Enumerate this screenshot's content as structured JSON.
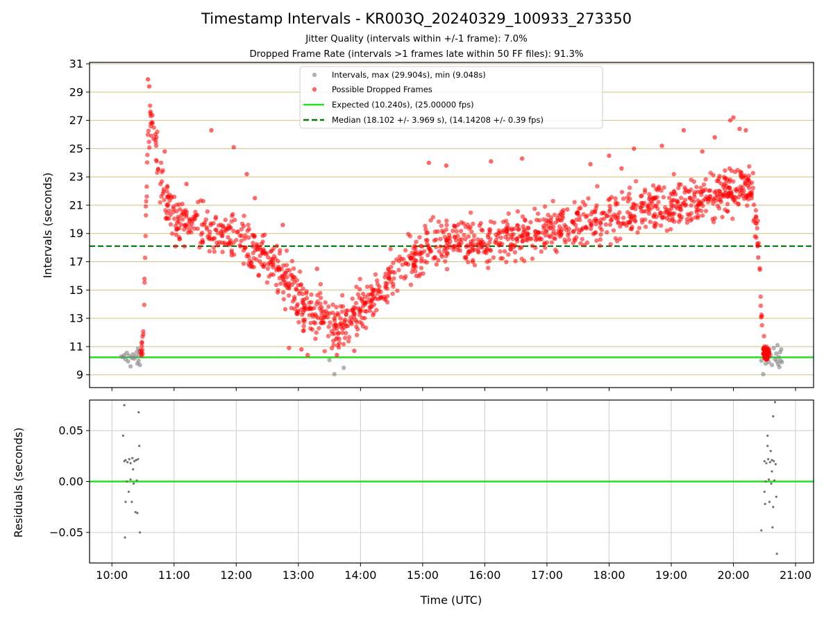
{
  "chart_data": [
    {
      "type": "scatter",
      "title": "Timestamp Intervals - KR003Q_20240329_100933_273350",
      "subtitles": [
        "Jitter Quality (intervals within +/-1 frame): 7.0%",
        "Dropped Frame Rate (intervals >1 frames late within 50 FF files): 91.3%"
      ],
      "ylabel": "Intervals (seconds)",
      "xlabel": "",
      "ylim": [
        8.1,
        31.1
      ],
      "xlim_hours": [
        9.64,
        21.29
      ],
      "yticks": [
        9,
        11,
        13,
        15,
        17,
        19,
        21,
        23,
        25,
        27,
        29,
        31
      ],
      "grid": "horizontal",
      "legend_position": "top-center",
      "legend": [
        "Intervals, max (29.904s), min (9.048s)",
        "Possible Dropped Frames",
        "Expected (10.240s), (25.00000 fps)",
        "Median (18.102 +/- 3.969 s), (14.14208 +/- 0.39 fps)"
      ],
      "expected_interval": 10.24,
      "median_interval": 18.102,
      "normal_points": [
        [
          10.15,
          10.3
        ],
        [
          10.18,
          10.25
        ],
        [
          10.2,
          10.4
        ],
        [
          10.22,
          10.1
        ],
        [
          10.24,
          10.55
        ],
        [
          10.26,
          9.95
        ],
        [
          10.28,
          10.35
        ],
        [
          10.3,
          9.6
        ],
        [
          10.32,
          10.2
        ],
        [
          10.34,
          10.45
        ],
        [
          10.36,
          10.15
        ],
        [
          10.38,
          10.3
        ],
        [
          10.4,
          10.6
        ],
        [
          10.41,
          9.8
        ],
        [
          10.42,
          10.85
        ],
        [
          10.43,
          10.0
        ],
        [
          10.44,
          10.4
        ],
        [
          10.45,
          9.7
        ],
        [
          10.46,
          10.75
        ],
        [
          10.47,
          10.5
        ],
        [
          13.5,
          10.05
        ],
        [
          13.58,
          9.05
        ],
        [
          13.73,
          9.5
        ],
        [
          20.45,
          10.0
        ],
        [
          20.48,
          9.05
        ],
        [
          20.5,
          10.3
        ],
        [
          20.52,
          9.8
        ],
        [
          20.55,
          10.7
        ],
        [
          20.57,
          9.9
        ],
        [
          20.6,
          10.4
        ],
        [
          20.62,
          9.7
        ],
        [
          20.65,
          10.9
        ],
        [
          20.67,
          10.1
        ],
        [
          20.69,
          10.5
        ],
        [
          20.7,
          9.95
        ],
        [
          20.71,
          11.1
        ],
        [
          20.72,
          9.75
        ],
        [
          20.73,
          10.25
        ],
        [
          20.74,
          9.55
        ],
        [
          20.75,
          10.6
        ],
        [
          20.76,
          10.0
        ],
        [
          20.77,
          10.8
        ],
        [
          20.78,
          9.9
        ]
      ],
      "dropped_curve": [
        [
          10.45,
          10.4
        ],
        [
          10.5,
          11.5
        ],
        [
          10.52,
          14.0
        ],
        [
          10.55,
          21.0
        ],
        [
          10.58,
          25.5
        ],
        [
          10.62,
          27.0
        ],
        [
          10.66,
          26.0
        ],
        [
          10.7,
          25.0
        ],
        [
          10.75,
          23.5
        ],
        [
          10.85,
          21.5
        ],
        [
          11.0,
          20.0
        ],
        [
          11.5,
          19.5
        ],
        [
          12.0,
          18.5
        ],
        [
          12.5,
          17.0
        ],
        [
          12.8,
          15.8
        ],
        [
          13.1,
          14.0
        ],
        [
          13.4,
          12.8
        ],
        [
          13.6,
          12.5
        ],
        [
          13.85,
          13.0
        ],
        [
          14.1,
          14.0
        ],
        [
          14.4,
          15.5
        ],
        [
          14.8,
          17.0
        ],
        [
          15.2,
          18.3
        ],
        [
          15.6,
          18.6
        ],
        [
          16.0,
          18.2
        ],
        [
          16.5,
          18.8
        ],
        [
          17.0,
          19.2
        ],
        [
          17.5,
          19.6
        ],
        [
          18.0,
          20.3
        ],
        [
          18.5,
          20.8
        ],
        [
          19.0,
          21.1
        ],
        [
          19.5,
          21.5
        ],
        [
          19.9,
          22.0
        ],
        [
          20.15,
          22.5
        ],
        [
          20.3,
          21.8
        ],
        [
          20.38,
          19.5
        ],
        [
          20.42,
          16.5
        ],
        [
          20.45,
          13.0
        ],
        [
          20.48,
          11.3
        ],
        [
          20.52,
          10.5
        ],
        [
          20.55,
          10.3
        ]
      ],
      "dropped_outliers": [
        [
          10.58,
          29.9
        ],
        [
          10.6,
          29.4
        ],
        [
          10.62,
          27.5
        ],
        [
          10.65,
          26.8
        ],
        [
          10.7,
          26.0
        ],
        [
          10.85,
          24.8
        ],
        [
          11.6,
          26.3
        ],
        [
          11.96,
          25.1
        ],
        [
          12.17,
          23.2
        ],
        [
          12.75,
          19.6
        ],
        [
          12.85,
          10.9
        ],
        [
          13.05,
          10.8
        ],
        [
          13.15,
          10.4
        ],
        [
          13.62,
          10.4
        ],
        [
          13.9,
          10.7
        ],
        [
          15.1,
          24.0
        ],
        [
          15.38,
          23.8
        ],
        [
          16.1,
          24.1
        ],
        [
          16.6,
          24.3
        ],
        [
          17.7,
          23.9
        ],
        [
          18.0,
          24.5
        ],
        [
          18.4,
          25.0
        ],
        [
          18.85,
          25.2
        ],
        [
          19.2,
          26.3
        ],
        [
          19.7,
          25.8
        ],
        [
          19.95,
          27.0
        ],
        [
          20.0,
          27.2
        ],
        [
          20.1,
          26.4
        ],
        [
          20.2,
          26.3
        ],
        [
          20.35,
          18.8
        ],
        [
          20.4,
          17.3
        ],
        [
          18.2,
          23.6
        ],
        [
          19.5,
          24.8
        ],
        [
          14.9,
          16.0
        ],
        [
          13.3,
          16.5
        ],
        [
          12.3,
          21.5
        ],
        [
          11.2,
          22.5
        ]
      ]
    },
    {
      "type": "scatter",
      "title": "",
      "xlabel": "Time (UTC)",
      "ylabel": "Residuals (seconds)",
      "ylim": [
        -0.08,
        0.08
      ],
      "yticks": [
        0.05,
        0.0,
        -0.05
      ],
      "ytick_labels": [
        "0.05",
        "0.00",
        "−0.05"
      ],
      "xticks_hours": [
        10,
        11,
        12,
        13,
        14,
        15,
        16,
        17,
        18,
        19,
        20,
        21
      ],
      "xtick_labels": [
        "10:00",
        "11:00",
        "12:00",
        "13:00",
        "14:00",
        "15:00",
        "16:00",
        "17:00",
        "18:00",
        "19:00",
        "20:00",
        "21:00"
      ],
      "grid": "both",
      "zero_line": 0.0,
      "residual_points": [
        [
          10.2,
          0.075
        ],
        [
          10.43,
          0.068
        ],
        [
          10.18,
          0.045
        ],
        [
          10.21,
          -0.055
        ],
        [
          10.45,
          -0.05
        ],
        [
          10.2,
          0.02
        ],
        [
          10.22,
          0.021
        ],
        [
          10.25,
          0.019
        ],
        [
          10.28,
          0.022
        ],
        [
          10.3,
          0.018
        ],
        [
          10.33,
          0.023
        ],
        [
          10.36,
          0.02
        ],
        [
          10.39,
          0.021
        ],
        [
          10.42,
          0.022
        ],
        [
          10.24,
          0.0
        ],
        [
          10.3,
          0.002
        ],
        [
          10.35,
          -0.002
        ],
        [
          10.4,
          0.001
        ],
        [
          10.27,
          -0.01
        ],
        [
          10.32,
          -0.02
        ],
        [
          10.38,
          -0.03
        ],
        [
          10.41,
          -0.031
        ],
        [
          10.44,
          0.035
        ],
        [
          10.34,
          0.012
        ],
        [
          10.22,
          -0.02
        ],
        [
          20.45,
          -0.048
        ],
        [
          20.55,
          0.045
        ],
        [
          20.64,
          0.064
        ],
        [
          20.67,
          0.078
        ],
        [
          20.7,
          -0.071
        ],
        [
          20.63,
          -0.045
        ],
        [
          20.5,
          0.02
        ],
        [
          20.53,
          0.018
        ],
        [
          20.56,
          0.022
        ],
        [
          20.59,
          0.019
        ],
        [
          20.62,
          0.021
        ],
        [
          20.65,
          0.02
        ],
        [
          20.68,
          0.017
        ],
        [
          20.52,
          0.0
        ],
        [
          20.57,
          0.002
        ],
        [
          20.61,
          -0.002
        ],
        [
          20.66,
          0.001
        ],
        [
          20.5,
          -0.01
        ],
        [
          20.58,
          -0.02
        ],
        [
          20.64,
          -0.025
        ],
        [
          20.69,
          -0.015
        ],
        [
          20.55,
          0.035
        ],
        [
          20.62,
          0.01
        ],
        [
          20.51,
          -0.022
        ],
        [
          20.6,
          0.03
        ]
      ]
    }
  ],
  "colors": {
    "normal_points": "#808080",
    "dropped_points": "#ff0000",
    "expected_line": "#1fe01f",
    "median_line": "#007a00",
    "grid_y": "#d2c07a",
    "grid_residual": "#cccccc"
  }
}
